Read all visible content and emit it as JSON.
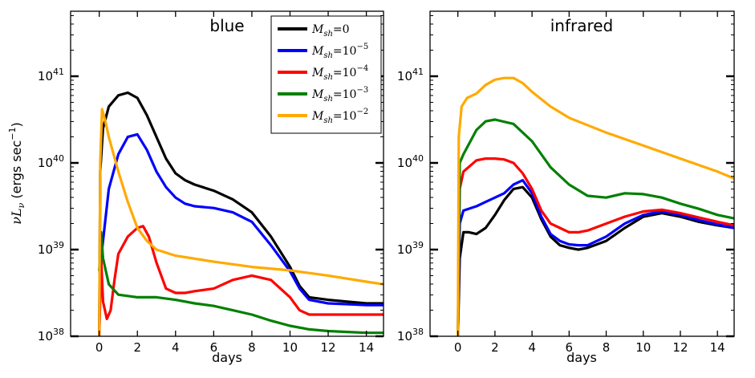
{
  "chart_data": [
    {
      "type": "line",
      "title": "blue",
      "xlabel": "days",
      "ylabel": "νLν (ergs sec⁻¹)",
      "ylabel_parts": {
        "nu": "ν",
        "L": "L",
        "sub": "ν",
        "units": " (ergs sec",
        "exp": "−1",
        "close": ")"
      },
      "xlim": [
        -1.5,
        14.9
      ],
      "ylim_log10": [
        38,
        41.75
      ],
      "yscale": "log",
      "xticks": [
        0,
        2,
        4,
        6,
        8,
        10,
        12,
        14
      ],
      "yticks_log10": [
        38,
        39,
        40,
        41
      ],
      "yticklabels": [
        {
          "base": "10",
          "exp": "38"
        },
        {
          "base": "10",
          "exp": "39"
        },
        {
          "base": "10",
          "exp": "40"
        },
        {
          "base": "10",
          "exp": "41"
        }
      ],
      "legend": {
        "placement": "top-right"
      },
      "series": [
        {
          "name": "M_sh=0",
          "color": "#000000",
          "log10": [
            [
              0,
              38.0
            ],
            [
              0.05,
              39.9
            ],
            [
              0.2,
              40.4
            ],
            [
              0.5,
              40.65
            ],
            [
              1.0,
              40.78
            ],
            [
              1.5,
              40.81
            ],
            [
              2.0,
              40.75
            ],
            [
              2.5,
              40.55
            ],
            [
              3.0,
              40.3
            ],
            [
              3.5,
              40.05
            ],
            [
              4.0,
              39.88
            ],
            [
              4.5,
              39.8
            ],
            [
              5.0,
              39.75
            ],
            [
              6.0,
              39.68
            ],
            [
              7.0,
              39.58
            ],
            [
              8.0,
              39.43
            ],
            [
              9.0,
              39.15
            ],
            [
              10.0,
              38.8
            ],
            [
              10.5,
              38.58
            ],
            [
              11.0,
              38.45
            ],
            [
              12.0,
              38.42
            ],
            [
              13.0,
              38.4
            ],
            [
              14.0,
              38.38
            ],
            [
              14.9,
              38.38
            ]
          ]
        },
        {
          "name": "M_sh=10^-5",
          "color": "#0000ff",
          "log10": [
            [
              0,
              38.0
            ],
            [
              0.05,
              38.8
            ],
            [
              0.2,
              39.1
            ],
            [
              0.5,
              39.7
            ],
            [
              1.0,
              40.1
            ],
            [
              1.5,
              40.3
            ],
            [
              2.0,
              40.33
            ],
            [
              2.5,
              40.15
            ],
            [
              3.0,
              39.9
            ],
            [
              3.5,
              39.72
            ],
            [
              4.0,
              39.6
            ],
            [
              4.5,
              39.53
            ],
            [
              5.0,
              39.5
            ],
            [
              6.0,
              39.48
            ],
            [
              7.0,
              39.43
            ],
            [
              8.0,
              39.32
            ],
            [
              9.0,
              39.05
            ],
            [
              10.0,
              38.75
            ],
            [
              10.5,
              38.55
            ],
            [
              11.0,
              38.42
            ],
            [
              12.0,
              38.38
            ],
            [
              13.0,
              38.37
            ],
            [
              14.0,
              38.36
            ],
            [
              14.9,
              38.36
            ]
          ]
        },
        {
          "name": "M_sh=10^-4",
          "color": "#ff0000",
          "log10": [
            [
              0,
              38.0
            ],
            [
              0.1,
              38.9
            ],
            [
              0.2,
              38.4
            ],
            [
              0.4,
              38.2
            ],
            [
              0.6,
              38.3
            ],
            [
              0.8,
              38.65
            ],
            [
              1.0,
              38.95
            ],
            [
              1.5,
              39.15
            ],
            [
              2.0,
              39.25
            ],
            [
              2.3,
              39.27
            ],
            [
              2.6,
              39.15
            ],
            [
              3.0,
              38.85
            ],
            [
              3.5,
              38.55
            ],
            [
              4.0,
              38.5
            ],
            [
              4.5,
              38.5
            ],
            [
              5.0,
              38.52
            ],
            [
              6.0,
              38.55
            ],
            [
              7.0,
              38.65
            ],
            [
              8.0,
              38.7
            ],
            [
              9.0,
              38.65
            ],
            [
              10.0,
              38.45
            ],
            [
              10.5,
              38.3
            ],
            [
              11.0,
              38.25
            ],
            [
              12.0,
              38.25
            ],
            [
              13.0,
              38.25
            ],
            [
              14.0,
              38.25
            ],
            [
              14.9,
              38.25
            ]
          ]
        },
        {
          "name": "M_sh=10^-3",
          "color": "#008000",
          "log10": [
            [
              0,
              38.75
            ],
            [
              0.1,
              39.2
            ],
            [
              0.2,
              38.9
            ],
            [
              0.5,
              38.6
            ],
            [
              1.0,
              38.48
            ],
            [
              2.0,
              38.45
            ],
            [
              3.0,
              38.45
            ],
            [
              4.0,
              38.42
            ],
            [
              5.0,
              38.38
            ],
            [
              6.0,
              38.35
            ],
            [
              7.0,
              38.3
            ],
            [
              8.0,
              38.25
            ],
            [
              9.0,
              38.18
            ],
            [
              10.0,
              38.12
            ],
            [
              11.0,
              38.08
            ],
            [
              12.0,
              38.06
            ],
            [
              13.0,
              38.05
            ],
            [
              14.0,
              38.04
            ],
            [
              14.9,
              38.04
            ]
          ]
        },
        {
          "name": "M_sh=10^-2",
          "color": "#ffaa00",
          "log10": [
            [
              0,
              38.0
            ],
            [
              0.05,
              40.0
            ],
            [
              0.15,
              40.62
            ],
            [
              0.3,
              40.5
            ],
            [
              0.5,
              40.3
            ],
            [
              1.0,
              39.9
            ],
            [
              1.5,
              39.55
            ],
            [
              2.0,
              39.25
            ],
            [
              2.5,
              39.1
            ],
            [
              3.0,
              39.0
            ],
            [
              4.0,
              38.93
            ],
            [
              6.0,
              38.86
            ],
            [
              8.0,
              38.8
            ],
            [
              10.0,
              38.76
            ],
            [
              12.0,
              38.7
            ],
            [
              14.0,
              38.63
            ],
            [
              14.9,
              38.6
            ]
          ]
        }
      ]
    },
    {
      "type": "line",
      "title": "infrared",
      "xlabel": "days",
      "xlim": [
        -1.5,
        14.9
      ],
      "ylim_log10": [
        38,
        41.75
      ],
      "yscale": "log",
      "xticks": [
        0,
        2,
        4,
        6,
        8,
        10,
        12,
        14
      ],
      "yticks_log10": [
        38,
        39,
        40,
        41
      ],
      "yticklabels": [
        {
          "base": "10",
          "exp": "38"
        },
        {
          "base": "10",
          "exp": "39"
        },
        {
          "base": "10",
          "exp": "40"
        },
        {
          "base": "10",
          "exp": "41"
        }
      ],
      "series": [
        {
          "name": "M_sh=0",
          "color": "#000000",
          "log10": [
            [
              0,
              38.0
            ],
            [
              0.1,
              38.9
            ],
            [
              0.3,
              39.2
            ],
            [
              0.6,
              39.2
            ],
            [
              1.0,
              39.18
            ],
            [
              1.5,
              39.25
            ],
            [
              2.0,
              39.4
            ],
            [
              2.5,
              39.57
            ],
            [
              3.0,
              39.7
            ],
            [
              3.5,
              39.72
            ],
            [
              4.0,
              39.6
            ],
            [
              4.5,
              39.35
            ],
            [
              5.0,
              39.15
            ],
            [
              5.5,
              39.05
            ],
            [
              6.0,
              39.02
            ],
            [
              6.5,
              39.0
            ],
            [
              7.0,
              39.02
            ],
            [
              8.0,
              39.1
            ],
            [
              9.0,
              39.25
            ],
            [
              10.0,
              39.38
            ],
            [
              11.0,
              39.42
            ],
            [
              12.0,
              39.38
            ],
            [
              13.0,
              39.32
            ],
            [
              14.0,
              39.28
            ],
            [
              14.9,
              39.25
            ]
          ]
        },
        {
          "name": "M_sh=10^-5",
          "color": "#0000ff",
          "log10": [
            [
              0,
              38.0
            ],
            [
              0.1,
              39.3
            ],
            [
              0.3,
              39.45
            ],
            [
              1.0,
              39.5
            ],
            [
              1.5,
              39.55
            ],
            [
              2.0,
              39.6
            ],
            [
              2.5,
              39.65
            ],
            [
              3.0,
              39.75
            ],
            [
              3.5,
              39.8
            ],
            [
              4.0,
              39.65
            ],
            [
              4.5,
              39.38
            ],
            [
              5.0,
              39.18
            ],
            [
              5.5,
              39.1
            ],
            [
              6.0,
              39.06
            ],
            [
              6.5,
              39.05
            ],
            [
              7.0,
              39.05
            ],
            [
              8.0,
              39.15
            ],
            [
              9.0,
              39.3
            ],
            [
              10.0,
              39.4
            ],
            [
              11.0,
              39.44
            ],
            [
              12.0,
              39.4
            ],
            [
              13.0,
              39.34
            ],
            [
              14.0,
              39.29
            ],
            [
              14.9,
              39.25
            ]
          ]
        },
        {
          "name": "M_sh=10^-4",
          "color": "#ff0000",
          "log10": [
            [
              0,
              38.0
            ],
            [
              0.1,
              39.7
            ],
            [
              0.3,
              39.9
            ],
            [
              1.0,
              40.03
            ],
            [
              1.5,
              40.05
            ],
            [
              2.0,
              40.05
            ],
            [
              2.5,
              40.04
            ],
            [
              3.0,
              40.0
            ],
            [
              3.5,
              39.88
            ],
            [
              4.0,
              39.7
            ],
            [
              4.5,
              39.45
            ],
            [
              5.0,
              39.3
            ],
            [
              5.5,
              39.25
            ],
            [
              6.0,
              39.2
            ],
            [
              6.5,
              39.2
            ],
            [
              7.0,
              39.22
            ],
            [
              8.0,
              39.3
            ],
            [
              9.0,
              39.38
            ],
            [
              10.0,
              39.44
            ],
            [
              11.0,
              39.46
            ],
            [
              12.0,
              39.42
            ],
            [
              13.0,
              39.37
            ],
            [
              14.0,
              39.32
            ],
            [
              14.9,
              39.28
            ]
          ]
        },
        {
          "name": "M_sh=10^-3",
          "color": "#008000",
          "log10": [
            [
              0,
              38.0
            ],
            [
              0.1,
              40.0
            ],
            [
              0.3,
              40.1
            ],
            [
              1.0,
              40.38
            ],
            [
              1.5,
              40.48
            ],
            [
              2.0,
              40.5
            ],
            [
              3.0,
              40.45
            ],
            [
              4.0,
              40.25
            ],
            [
              5.0,
              39.95
            ],
            [
              6.0,
              39.75
            ],
            [
              7.0,
              39.62
            ],
            [
              8.0,
              39.6
            ],
            [
              9.0,
              39.65
            ],
            [
              10.0,
              39.64
            ],
            [
              11.0,
              39.6
            ],
            [
              12.0,
              39.53
            ],
            [
              13.0,
              39.47
            ],
            [
              14.0,
              39.4
            ],
            [
              14.9,
              39.36
            ]
          ]
        },
        {
          "name": "M_sh=10^-2",
          "color": "#ffaa00",
          "log10": [
            [
              0,
              38.0
            ],
            [
              0.05,
              40.3
            ],
            [
              0.2,
              40.65
            ],
            [
              0.5,
              40.75
            ],
            [
              1.0,
              40.8
            ],
            [
              1.5,
              40.9
            ],
            [
              2.0,
              40.96
            ],
            [
              2.5,
              40.98
            ],
            [
              3.0,
              40.98
            ],
            [
              3.5,
              40.92
            ],
            [
              4.0,
              40.82
            ],
            [
              5.0,
              40.65
            ],
            [
              6.0,
              40.52
            ],
            [
              8.0,
              40.35
            ],
            [
              10.0,
              40.2
            ],
            [
              12.0,
              40.05
            ],
            [
              14.0,
              39.9
            ],
            [
              14.9,
              39.82
            ]
          ]
        }
      ]
    }
  ],
  "legend_entries": [
    {
      "base": "M",
      "sub": "sh",
      "eq": "=0",
      "sup": ""
    },
    {
      "base": "M",
      "sub": "sh",
      "eq": "=10",
      "sup": "−5"
    },
    {
      "base": "M",
      "sub": "sh",
      "eq": "=10",
      "sup": "−4"
    },
    {
      "base": "M",
      "sub": "sh",
      "eq": "=10",
      "sup": "−3"
    },
    {
      "base": "M",
      "sub": "sh",
      "eq": "=10",
      "sup": "−2"
    }
  ]
}
